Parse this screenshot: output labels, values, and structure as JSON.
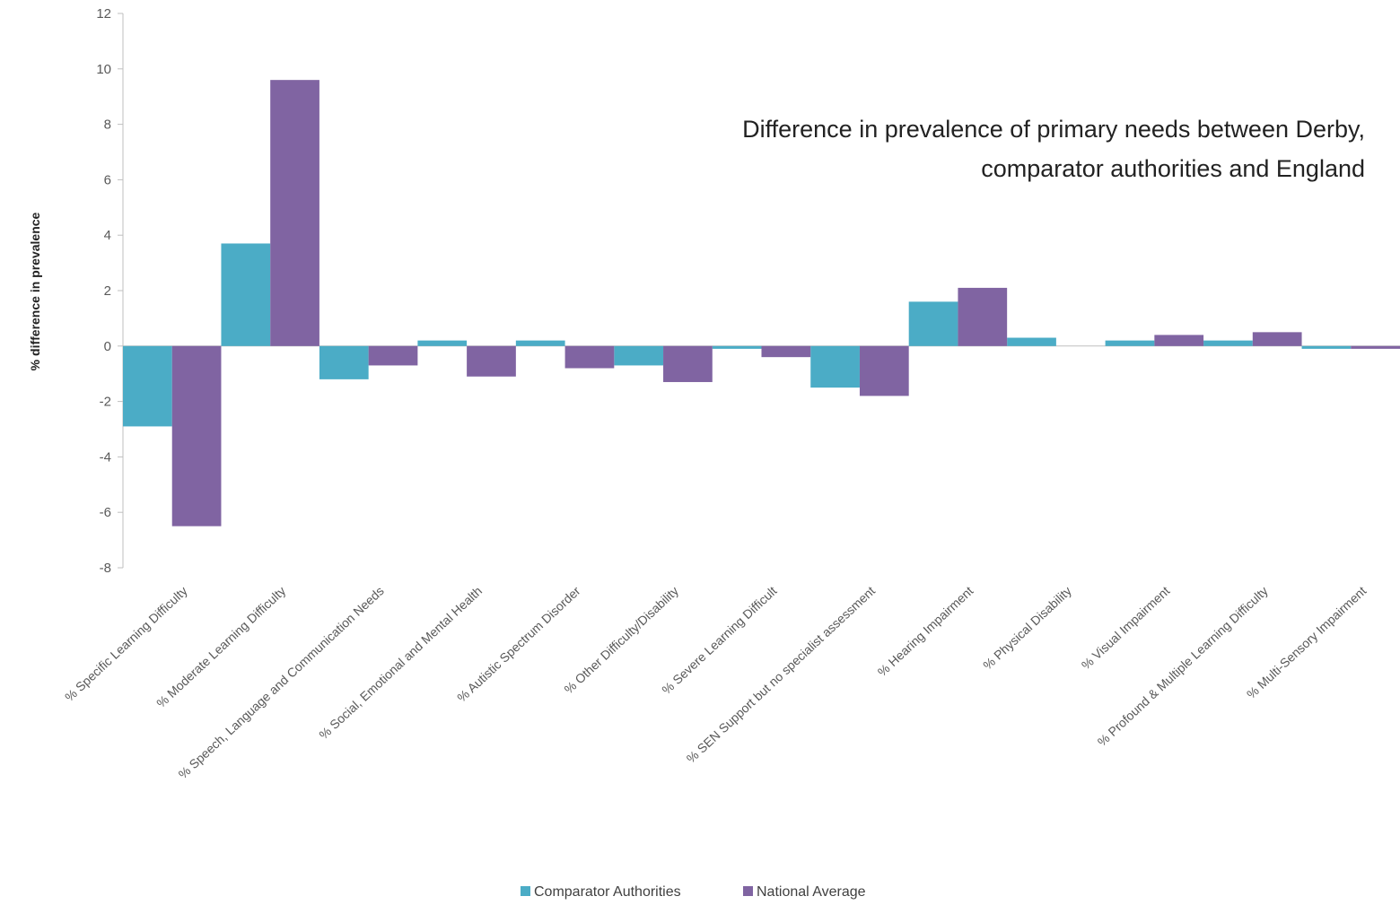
{
  "chart_data": {
    "type": "bar",
    "title_lines": [
      "Difference in prevalence of primary needs between Derby,",
      "comparator authorities and England"
    ],
    "xlabel": "",
    "ylabel": "% difference in prevalence",
    "ylim": [
      -8,
      12
    ],
    "yticks": [
      -8,
      -6,
      -4,
      -2,
      0,
      2,
      4,
      6,
      8,
      10,
      12
    ],
    "ytick_labels": [
      "-8",
      "-6",
      "-4",
      "-2",
      "0",
      "2",
      "4",
      "6",
      "8",
      "10",
      "12"
    ],
    "grid": false,
    "legend_position": "bottom",
    "categories": [
      "% Specific Learning Difficulty",
      "% Moderate Learning Difficulty",
      "% Speech, Language and Communication Needs",
      "% Social, Emotional and Mental Health",
      "% Autistic Spectrum Disorder",
      "% Other Difficulty/Disability",
      "% Severe Learning Difficult",
      "% SEN Support but no specialist assessment",
      "% Hearing Impairment",
      "% Physical Disability",
      "% Visual Impairment",
      "% Profound & Multiple Learning Difficulty",
      "% Multi-Sensory Impairment"
    ],
    "series": [
      {
        "name": "Comparator Authorities",
        "color": "#4BACC6",
        "values": [
          -2.9,
          3.7,
          -1.2,
          0.2,
          0.2,
          -0.7,
          -0.1,
          -1.5,
          1.6,
          0.3,
          0.2,
          0.2,
          -0.1
        ]
      },
      {
        "name": "National Average",
        "color": "#8064A2",
        "values": [
          -6.5,
          9.6,
          -0.7,
          -1.1,
          -0.8,
          -1.3,
          -0.4,
          -1.8,
          2.1,
          0.0,
          0.4,
          0.5,
          -0.1
        ]
      }
    ]
  }
}
